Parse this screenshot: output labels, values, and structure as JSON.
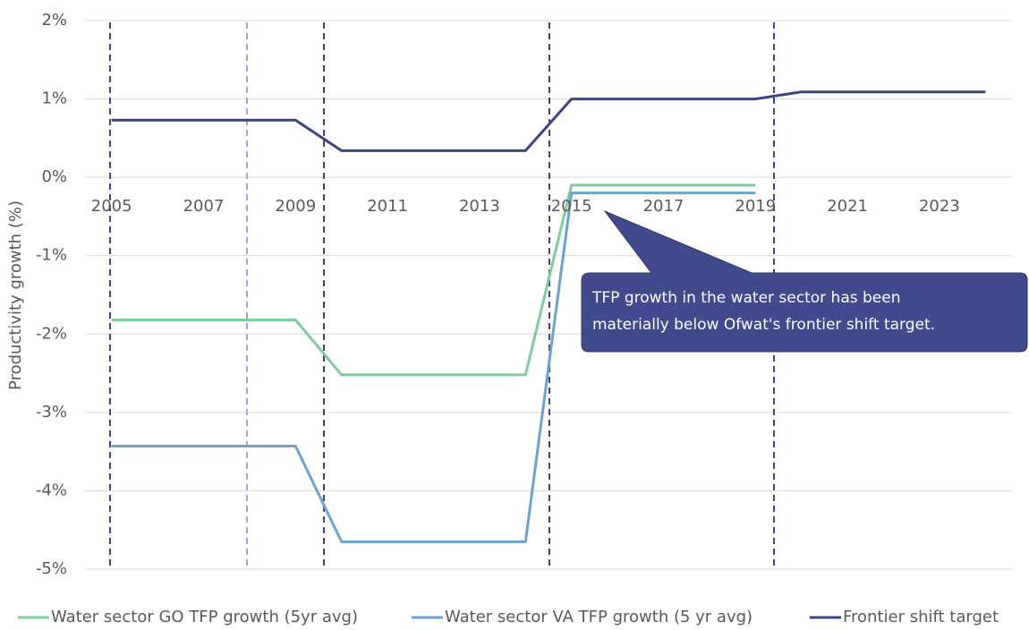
{
  "chart_data": {
    "type": "line",
    "y_label": "Productivity growth (%)",
    "categories": [
      "2005",
      null,
      "2007",
      null,
      "2009",
      null,
      "2011",
      null,
      "2013",
      null,
      "2015",
      null,
      "2017",
      null,
      "2019",
      null,
      "2021",
      null,
      "2023",
      null
    ],
    "series": [
      {
        "name": "Water sector GO TFP growth (5yr avg)",
        "color": "#7fcc9c",
        "values": [
          -1.82,
          -1.82,
          -1.82,
          -1.82,
          -1.82,
          -2.52,
          -2.52,
          -2.52,
          -2.52,
          -2.52,
          -0.1,
          -0.1,
          -0.1,
          -0.1,
          -0.1,
          null,
          null,
          null,
          null,
          null
        ]
      },
      {
        "name": "Water sector VA TFP growth (5 yr avg)",
        "color": "#6aa3d0",
        "values": [
          -3.43,
          -3.43,
          -3.43,
          -3.43,
          -3.43,
          -4.65,
          -4.65,
          -4.65,
          -4.65,
          -4.65,
          -0.2,
          -0.2,
          -0.2,
          -0.2,
          -0.2,
          null,
          null,
          null,
          null,
          null
        ]
      },
      {
        "name": "Frontier shift target",
        "color": "#3c4488",
        "values": [
          0.73,
          0.73,
          0.73,
          0.73,
          0.73,
          0.34,
          0.34,
          0.34,
          0.34,
          0.34,
          1.0,
          1.0,
          1.0,
          1.0,
          1.0,
          1.09,
          1.09,
          1.09,
          1.09,
          1.09
        ]
      }
    ],
    "ylim": [
      -5,
      2
    ],
    "yticks": [
      {
        "value": -5,
        "label": "-5%"
      },
      {
        "value": -4,
        "label": "-4%"
      },
      {
        "value": -3,
        "label": "-3%"
      },
      {
        "value": -2,
        "label": "-2%"
      },
      {
        "value": -1,
        "label": "-1%"
      },
      {
        "value": 0,
        "label": "0%"
      },
      {
        "value": 1,
        "label": "1%"
      },
      {
        "value": 2,
        "label": "2%"
      }
    ],
    "grid": true,
    "legend": "bottom",
    "annotation": [
      "TFP growth in the water sector has been",
      "materially below Ofwat's frontier shift target."
    ]
  }
}
